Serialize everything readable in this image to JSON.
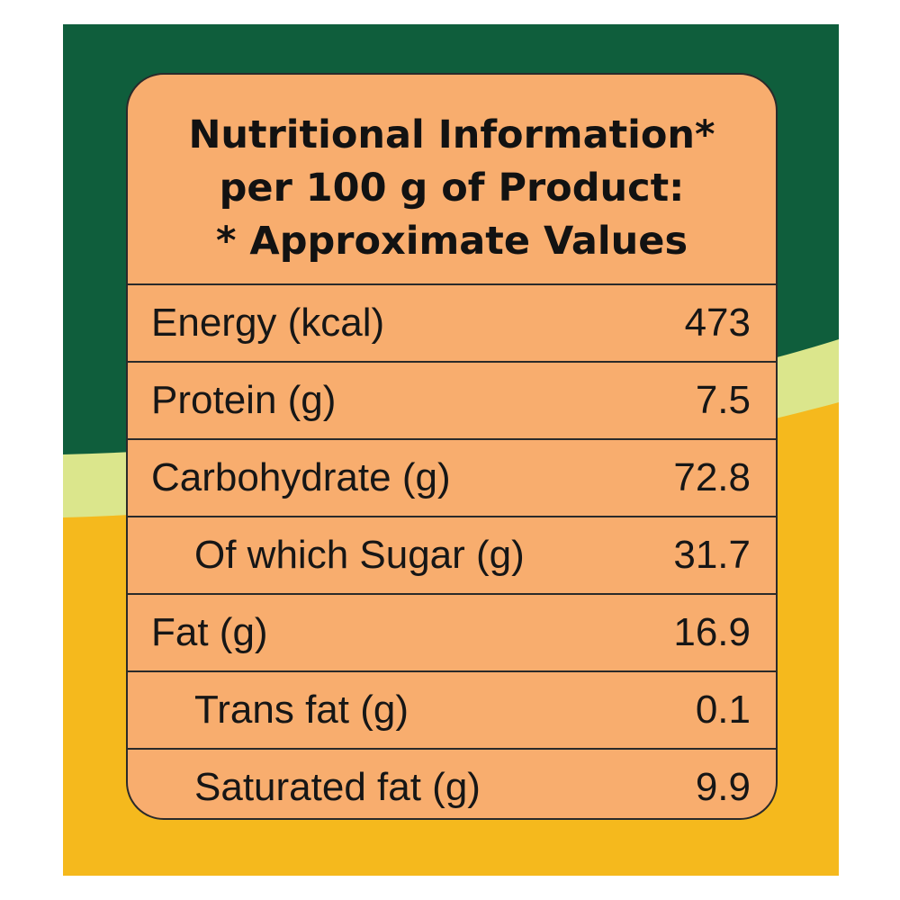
{
  "colors": {
    "dark_green": "#0f5e3c",
    "light_green": "#dbe68c",
    "yellow": "#f5b91d",
    "panel_orange": "#f8ad6e",
    "text": "#161616"
  },
  "heading": {
    "line1": "Nutritional Information*",
    "line2": "per 100 g of Product:",
    "line3": "* Approximate Values"
  },
  "rows": [
    {
      "label": "Energy (kcal)",
      "value": "473"
    },
    {
      "label": "Protein (g)",
      "value": "7.5"
    },
    {
      "label": "Carbohydrate (g)",
      "value": "72.8"
    },
    {
      "label": "Of which Sugar (g)",
      "value": "31.7"
    },
    {
      "label": "Fat (g)",
      "value": "16.9"
    },
    {
      "label": "Trans fat (g)",
      "value": "0.1"
    },
    {
      "label": "Saturated fat (g)",
      "value": "9.9"
    }
  ]
}
